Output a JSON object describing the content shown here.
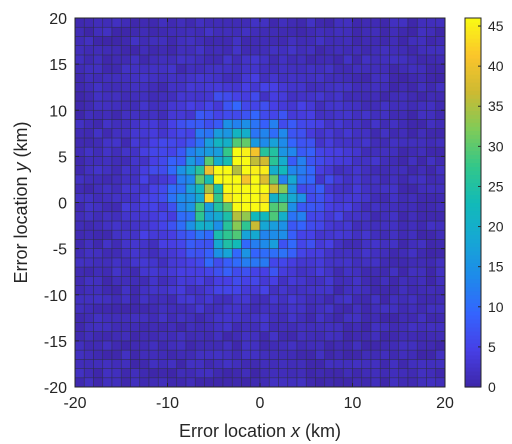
{
  "chart_data": {
    "type": "heatmap",
    "title": "",
    "xlabel_pre": "Error location ",
    "xlabel_var": "x",
    "xlabel_post": " (km)",
    "ylabel_pre": "Error location ",
    "ylabel_var": "y",
    "ylabel_post": " (km)",
    "xlim": [
      -20,
      20
    ],
    "ylim": [
      -20,
      20
    ],
    "x_ticks": [
      -20,
      -10,
      0,
      10,
      20
    ],
    "y_ticks": [
      20,
      15,
      10,
      5,
      0,
      -5,
      -10,
      -15,
      -20
    ],
    "bin_size_km": 1,
    "bins_per_axis": 40,
    "colormap": "parula",
    "colorbar": {
      "range": [
        0,
        46
      ],
      "ticks": [
        0,
        5,
        10,
        15,
        20,
        25,
        30,
        35,
        40,
        45
      ]
    },
    "distribution_peak": {
      "x_km": -2,
      "y_km": 1.5,
      "max_count": 45
    },
    "grid_edge_color": "#2b2b40",
    "background_count": 1
  }
}
